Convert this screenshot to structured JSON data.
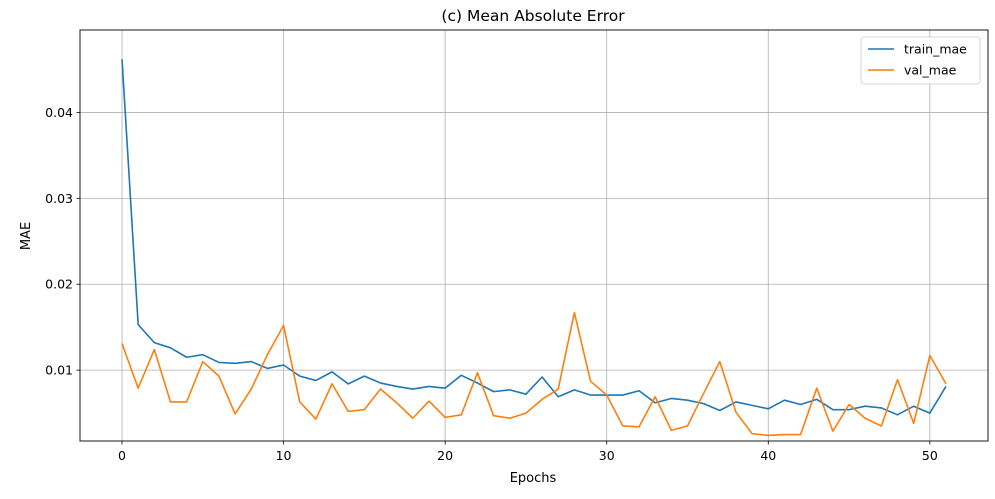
{
  "chart_data": {
    "type": "line",
    "title": "(c) Mean Absolute Error",
    "xlabel": "Epochs",
    "ylabel": "MAE",
    "xlim": [
      -2.6,
      53.6
    ],
    "ylim": [
      0.00175,
      0.0496
    ],
    "xticks": [
      0,
      10,
      20,
      30,
      40,
      50
    ],
    "xtick_labels": [
      "0",
      "10",
      "20",
      "30",
      "40",
      "50"
    ],
    "yticks": [
      0.01,
      0.02,
      0.03,
      0.04
    ],
    "ytick_labels": [
      "0.01",
      "0.02",
      "0.03",
      "0.04"
    ],
    "grid": true,
    "legend_position": "top-right",
    "x": [
      0,
      1,
      2,
      3,
      4,
      5,
      6,
      7,
      8,
      9,
      10,
      11,
      12,
      13,
      14,
      15,
      16,
      17,
      18,
      19,
      20,
      21,
      22,
      23,
      24,
      25,
      26,
      27,
      28,
      29,
      30,
      31,
      32,
      33,
      34,
      35,
      36,
      37,
      38,
      39,
      40,
      41,
      42,
      43,
      44,
      45,
      46,
      47,
      48,
      49,
      50,
      51
    ],
    "series": [
      {
        "name": "train_mae",
        "color": "#1f77b4",
        "values": [
          0.0462,
          0.0153,
          0.0132,
          0.0126,
          0.0115,
          0.0118,
          0.0109,
          0.0108,
          0.011,
          0.0102,
          0.0106,
          0.0093,
          0.0088,
          0.0098,
          0.0084,
          0.0093,
          0.0085,
          0.0081,
          0.0078,
          0.0081,
          0.0079,
          0.0094,
          0.0085,
          0.0075,
          0.0077,
          0.0072,
          0.0092,
          0.0069,
          0.0077,
          0.0071,
          0.0071,
          0.0071,
          0.0076,
          0.0062,
          0.0067,
          0.0065,
          0.0061,
          0.0053,
          0.0063,
          0.0059,
          0.0055,
          0.0065,
          0.006,
          0.0066,
          0.0054,
          0.0054,
          0.0058,
          0.0056,
          0.0048,
          0.0058,
          0.005,
          0.0081
        ]
      },
      {
        "name": "val_mae",
        "color": "#ff7f0e",
        "values": [
          0.0131,
          0.0079,
          0.0124,
          0.0063,
          0.0063,
          0.011,
          0.0093,
          0.0049,
          0.0078,
          0.0118,
          0.0152,
          0.0063,
          0.0043,
          0.0084,
          0.0052,
          0.0054,
          0.0078,
          0.0062,
          0.0044,
          0.0064,
          0.0045,
          0.0048,
          0.0097,
          0.0047,
          0.0044,
          0.005,
          0.0066,
          0.0078,
          0.0167,
          0.0087,
          0.0071,
          0.0035,
          0.0034,
          0.0069,
          0.003,
          0.0035,
          0.0073,
          0.011,
          0.0051,
          0.0026,
          0.0024,
          0.0025,
          0.0025,
          0.0079,
          0.0029,
          0.006,
          0.0044,
          0.0035,
          0.0089,
          0.0038,
          0.0117,
          0.0084
        ]
      }
    ]
  }
}
